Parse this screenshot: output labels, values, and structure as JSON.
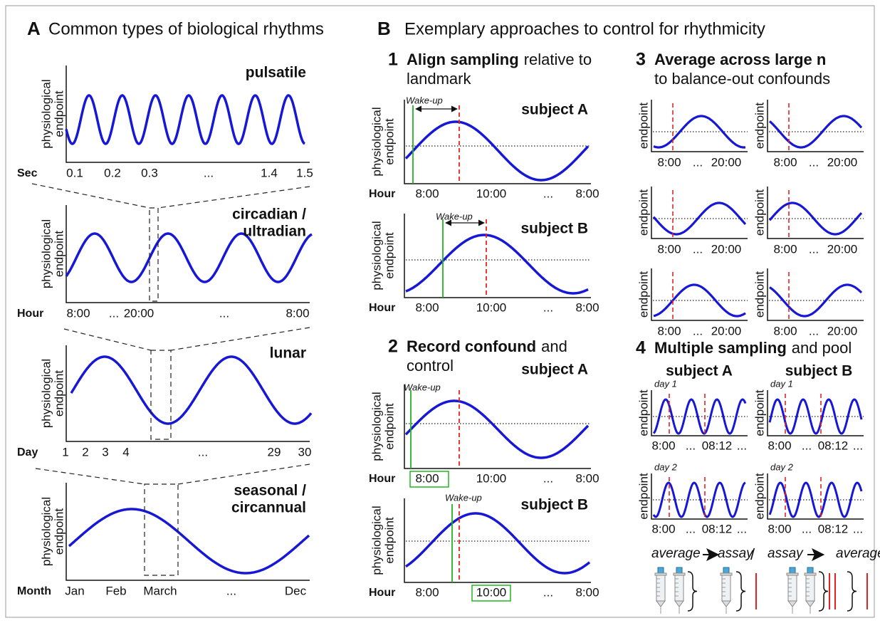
{
  "panel_a": {
    "letter": "A",
    "title": "Common types of biological rhythms",
    "y_label": [
      "physiological",
      "endpoint"
    ],
    "plots": [
      {
        "name": [
          "pulsatile"
        ],
        "unit": "Sec",
        "ticks": [
          "0.1",
          "0.2",
          "0.3",
          "...",
          "1.4",
          "1.5"
        ]
      },
      {
        "name": [
          "circadian /",
          "ultradian"
        ],
        "unit": "Hour",
        "ticks": [
          "8:00",
          "...",
          "20:00",
          "...",
          "8:00"
        ]
      },
      {
        "name": [
          "lunar"
        ],
        "unit": "Day",
        "ticks": [
          "1",
          "2",
          "3",
          "4",
          "...",
          "29",
          "30"
        ]
      },
      {
        "name": [
          "seasonal /",
          "circannual"
        ],
        "unit": "Month",
        "ticks": [
          "Jan",
          "Feb",
          "March",
          "...",
          "Dec"
        ]
      }
    ]
  },
  "panel_b": {
    "letter": "B",
    "title": "Exemplary approaches to control for rhythmicity",
    "sections": [
      {
        "number": "1",
        "bold": "Align sampling",
        "text": "relative to",
        "text_2": "landmark",
        "y_label": [
          "physiological",
          "endpoint"
        ],
        "unit": "Hour",
        "ticks": [
          "8:00",
          "10:00",
          "...",
          "8:00"
        ],
        "landmark": "Wake-up",
        "subjects": [
          "subject A",
          "subject B"
        ]
      },
      {
        "number": "2",
        "bold": "Record confound",
        "text": "and",
        "text_2": "control",
        "y_label": [
          "physiological",
          "endpoint"
        ],
        "unit": "Hour",
        "ticks": [
          "8:00",
          "10:00",
          "...",
          "8:00"
        ],
        "landmark": "Wake-up",
        "subjects": [
          "subject A",
          "subject B"
        ]
      },
      {
        "number": "3",
        "bold": "Average across large n",
        "text_2": "to balance-out confounds",
        "y_label": [
          "endpoint"
        ],
        "ticks": [
          "8:00",
          "...",
          "20:00"
        ]
      },
      {
        "number": "4",
        "bold": "Multiple sampling",
        "text": "and pool",
        "subjects": [
          "subject A",
          "subject B"
        ],
        "days": [
          "day 1",
          "day 2"
        ],
        "y_label": [
          "endpoint"
        ],
        "ticks": [
          "8:00",
          "...",
          "08:12",
          "..."
        ],
        "schemes": [
          {
            "first": "average",
            "second": "assay"
          },
          {
            "first": "assay",
            "second": "average"
          }
        ],
        "separator": "/"
      }
    ]
  }
}
